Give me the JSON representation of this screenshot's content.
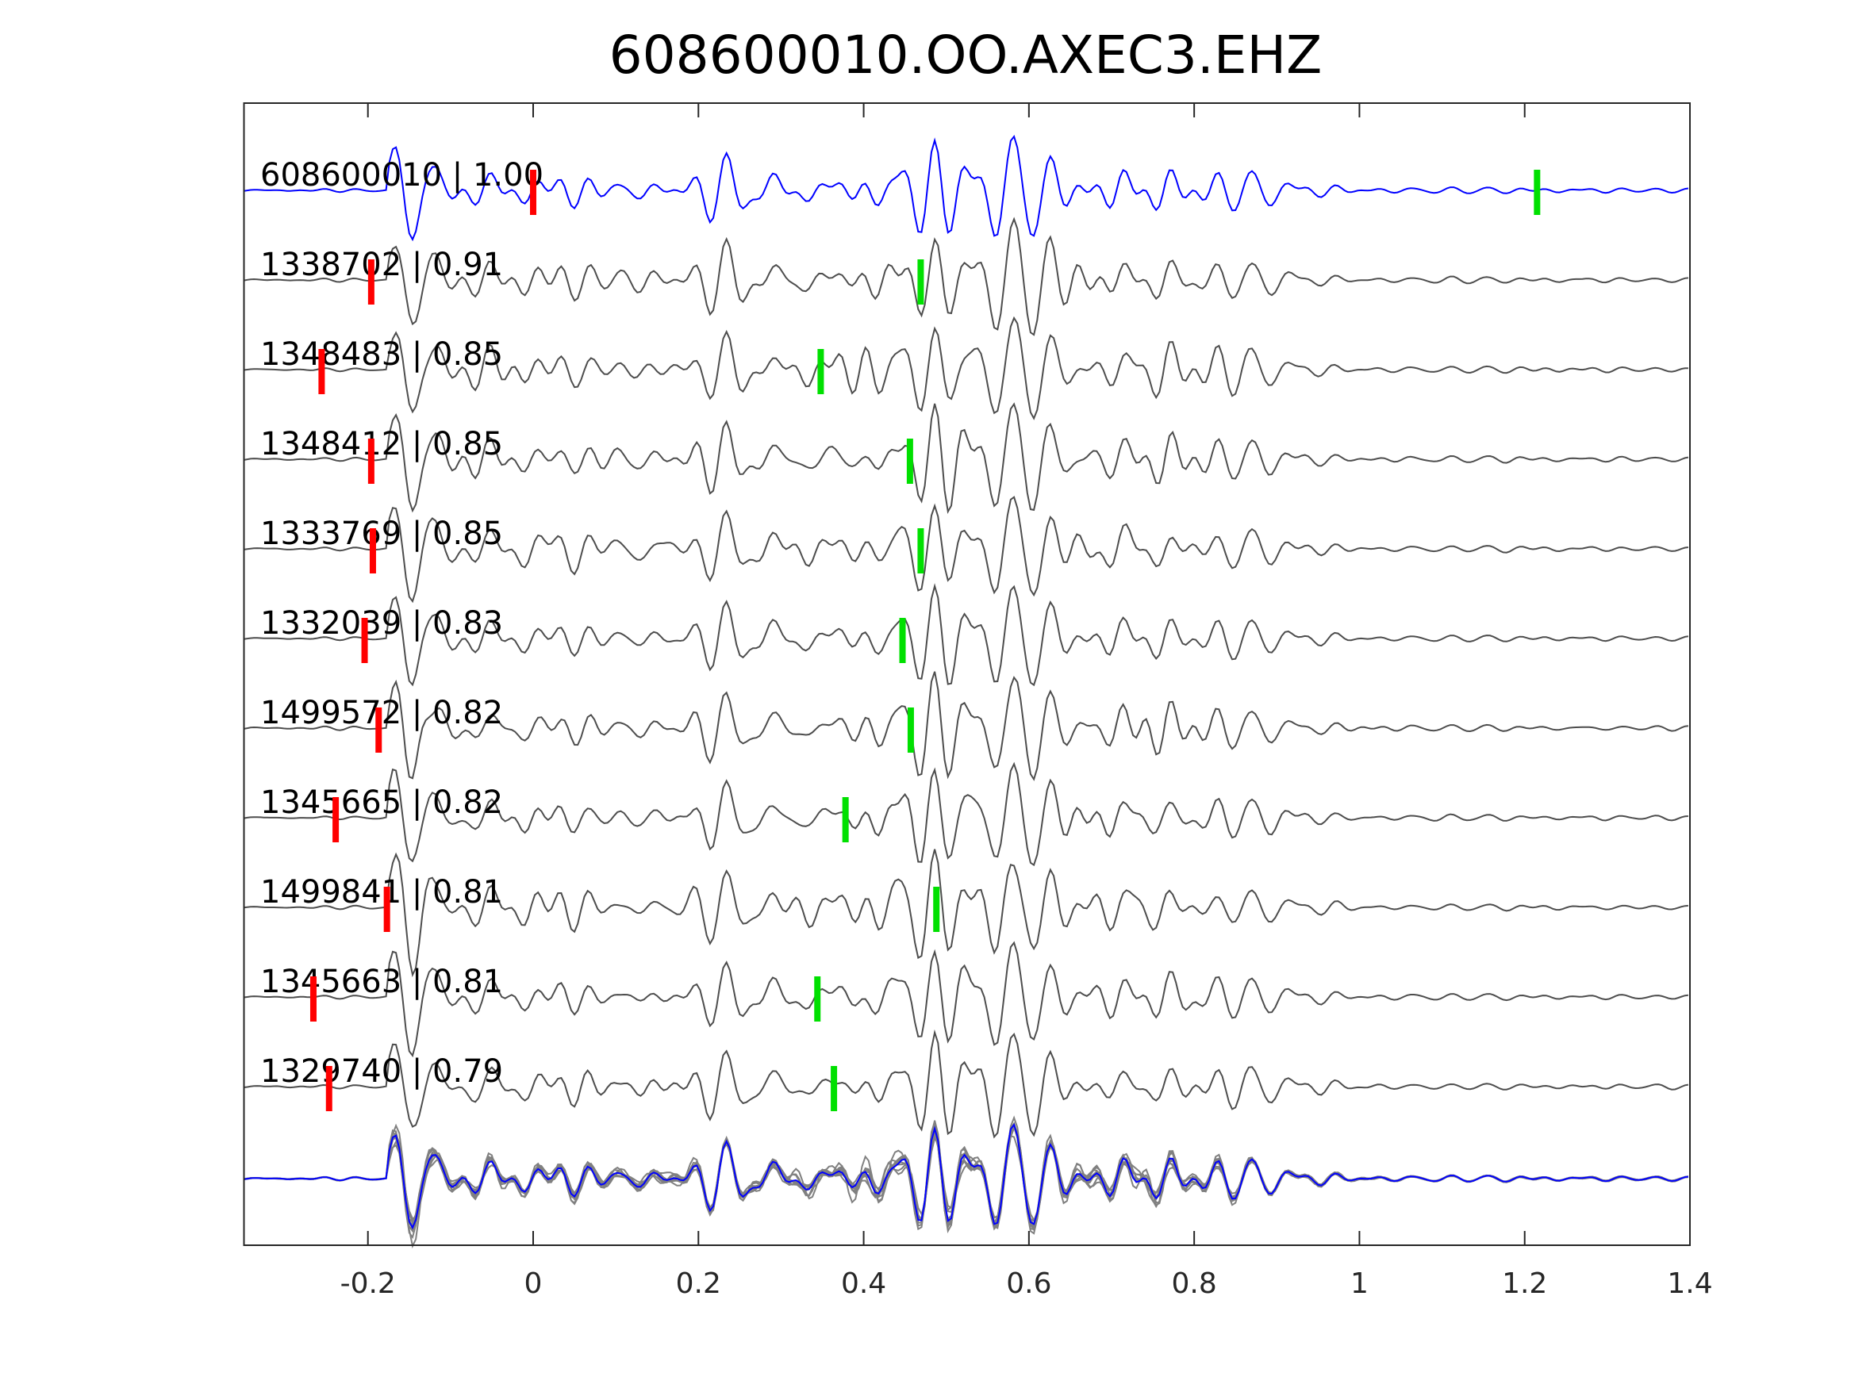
{
  "chart_data": {
    "type": "line",
    "title": "608600010.OO.AXEC3.EHZ",
    "xlabel": "",
    "ylabel": "",
    "xlim": [
      -0.35,
      1.4
    ],
    "xticks": [
      -0.2,
      0,
      0.2,
      0.4,
      0.6,
      0.8,
      1,
      1.2,
      1.4
    ],
    "xtick_labels": [
      "-0.2",
      "0",
      "0.2",
      "0.4",
      "0.6",
      "0.8",
      "1",
      "1.2",
      "1.4"
    ],
    "grid": false,
    "colors": {
      "template": "#0000ff",
      "neighbor": "#4d4d4d",
      "stack": "#808080",
      "p_pick": "#ff0000",
      "s_pick": "#00e000"
    },
    "traces": [
      {
        "label": "608600010 | 1.00",
        "p_pick": 0.0,
        "s_pick": 1.215,
        "template": true
      },
      {
        "label": "1338702 | 0.91",
        "p_pick": -0.196,
        "s_pick": 0.469
      },
      {
        "label": "1348483 | 0.85",
        "p_pick": -0.256,
        "s_pick": 0.348
      },
      {
        "label": "1348412 | 0.85",
        "p_pick": -0.196,
        "s_pick": 0.456
      },
      {
        "label": "1333769 | 0.85",
        "p_pick": -0.194,
        "s_pick": 0.469
      },
      {
        "label": "1332039 | 0.83",
        "p_pick": -0.204,
        "s_pick": 0.447
      },
      {
        "label": "1499572 | 0.82",
        "p_pick": -0.187,
        "s_pick": 0.457
      },
      {
        "label": "1345665 | 0.82",
        "p_pick": -0.239,
        "s_pick": 0.378
      },
      {
        "label": "1499841 | 0.81",
        "p_pick": -0.177,
        "s_pick": 0.488
      },
      {
        "label": "1345663 | 0.81",
        "p_pick": -0.266,
        "s_pick": 0.344
      },
      {
        "label": "1329740 | 0.79",
        "p_pick": -0.247,
        "s_pick": 0.364
      }
    ]
  }
}
